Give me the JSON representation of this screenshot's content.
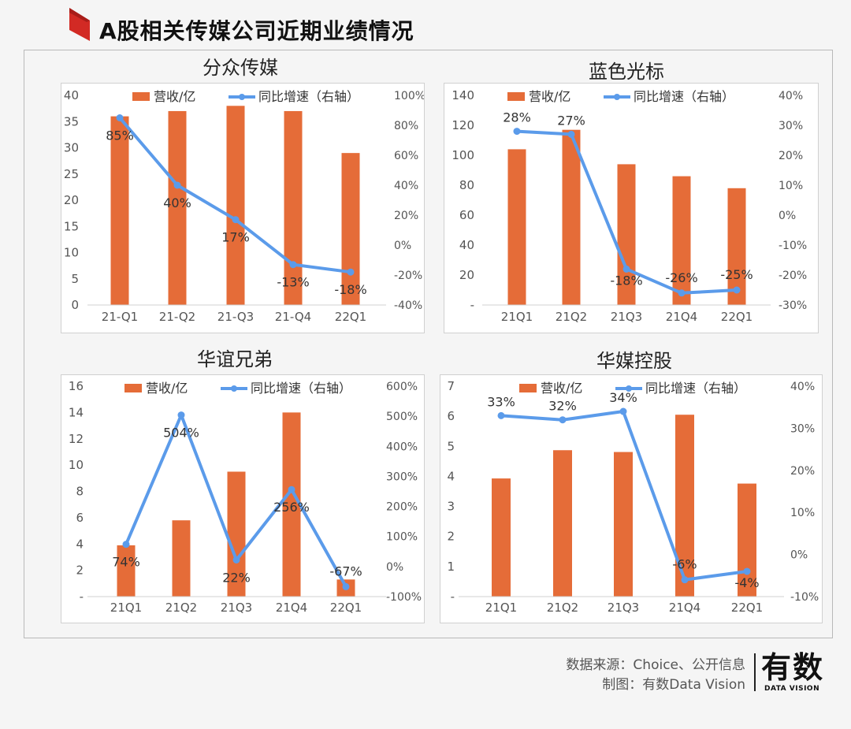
{
  "page": {
    "title": "A股相关传媒公司近期业绩情况"
  },
  "colors": {
    "accent_red": "#d22a24",
    "bar": "#e56c38",
    "line": "#5b9bea"
  },
  "footer": {
    "source": "数据来源：Choice、公开信息",
    "made_by": "制图：有数Data Vision",
    "logo_main": "有数",
    "logo_sub": "DATA VISION"
  },
  "chart_data": [
    {
      "type": "bar",
      "title": "分众传媒",
      "legend": {
        "bar": "营收/亿",
        "line": "同比增速（右轴）",
        "placement": "top"
      },
      "categories": [
        "21-Q1",
        "21-Q2",
        "21-Q3",
        "21-Q4",
        "22Q1"
      ],
      "series": [
        {
          "name": "营收/亿",
          "kind": "bar",
          "axis": "left",
          "values": [
            36,
            37,
            38,
            37,
            29
          ]
        },
        {
          "name": "同比增速（右轴）",
          "kind": "line",
          "axis": "right",
          "values": [
            85,
            40,
            17,
            -13,
            -18
          ]
        }
      ],
      "data_labels": [
        "85%",
        "40%",
        "17%",
        "-13%",
        "-18%"
      ],
      "left_axis": {
        "ylim": [
          0,
          40
        ],
        "ticks": [
          "0",
          "5",
          "10",
          "15",
          "20",
          "25",
          "30",
          "35",
          "40"
        ]
      },
      "right_axis": {
        "ylim": [
          -40,
          100
        ],
        "ticks": [
          "-40%",
          "-20%",
          "0%",
          "20%",
          "40%",
          "60%",
          "80%",
          "100%"
        ]
      },
      "grid": false
    },
    {
      "type": "bar",
      "title": "蓝色光标",
      "legend": {
        "bar": "营收/亿",
        "line": "同比增速（右轴）",
        "placement": "top"
      },
      "categories": [
        "21Q1",
        "21Q2",
        "21Q3",
        "21Q4",
        "22Q1"
      ],
      "series": [
        {
          "name": "营收/亿",
          "kind": "bar",
          "axis": "left",
          "values": [
            104,
            117,
            94,
            86,
            78
          ]
        },
        {
          "name": "同比增速（右轴）",
          "kind": "line",
          "axis": "right",
          "values": [
            28,
            27,
            -18,
            -26,
            -25
          ]
        }
      ],
      "data_labels": [
        "28%",
        "27%",
        "-18%",
        "-26%",
        "-25%"
      ],
      "left_axis": {
        "ylim": [
          0,
          140
        ],
        "ticks": [
          "-",
          "20",
          "40",
          "60",
          "80",
          "100",
          "120",
          "140"
        ]
      },
      "right_axis": {
        "ylim": [
          -30,
          40
        ],
        "ticks": [
          "-30%",
          "-20%",
          "-10%",
          "0%",
          "10%",
          "20%",
          "30%",
          "40%"
        ]
      },
      "grid": false
    },
    {
      "type": "bar",
      "title": "华谊兄弟",
      "legend": {
        "bar": "营收/亿",
        "line": "同比增速（右轴）",
        "placement": "top"
      },
      "categories": [
        "21Q1",
        "21Q2",
        "21Q3",
        "21Q4",
        "22Q1"
      ],
      "series": [
        {
          "name": "营收/亿",
          "kind": "bar",
          "axis": "left",
          "values": [
            3.9,
            5.8,
            9.5,
            14,
            1.3
          ]
        },
        {
          "name": "同比增速（右轴）",
          "kind": "line",
          "axis": "right",
          "values": [
            74,
            504,
            22,
            256,
            -67
          ]
        }
      ],
      "data_labels": [
        "74%",
        "504%",
        "22%",
        "256%",
        "-67%"
      ],
      "left_axis": {
        "ylim": [
          0,
          16
        ],
        "ticks": [
          "-",
          "2",
          "4",
          "6",
          "8",
          "10",
          "12",
          "14",
          "16"
        ]
      },
      "right_axis": {
        "ylim": [
          -100,
          600
        ],
        "ticks": [
          "-100%",
          "0%",
          "100%",
          "200%",
          "300%",
          "400%",
          "500%",
          "600%"
        ]
      },
      "grid": false
    },
    {
      "type": "bar",
      "title": "华媒控股",
      "legend": {
        "bar": "营收/亿",
        "line": "同比增速（右轴）",
        "placement": "top"
      },
      "categories": [
        "21Q1",
        "21Q2",
        "21Q3",
        "21Q4",
        "22Q1"
      ],
      "series": [
        {
          "name": "营收/亿",
          "kind": "bar",
          "axis": "left",
          "values": [
            3.93,
            4.87,
            4.81,
            6.05,
            3.76
          ]
        },
        {
          "name": "同比增速（右轴）",
          "kind": "line",
          "axis": "right",
          "values": [
            33,
            32,
            34,
            -6,
            -4
          ]
        }
      ],
      "data_labels": [
        "33%",
        "32%",
        "34%",
        "-6%",
        "-4%"
      ],
      "left_axis": {
        "ylim": [
          0,
          7
        ],
        "ticks": [
          "-",
          "1",
          "2",
          "3",
          "4",
          "5",
          "6",
          "7"
        ]
      },
      "right_axis": {
        "ylim": [
          -10,
          40
        ],
        "ticks": [
          "-10%",
          "0%",
          "10%",
          "20%",
          "30%",
          "40%"
        ]
      },
      "grid": false
    }
  ]
}
